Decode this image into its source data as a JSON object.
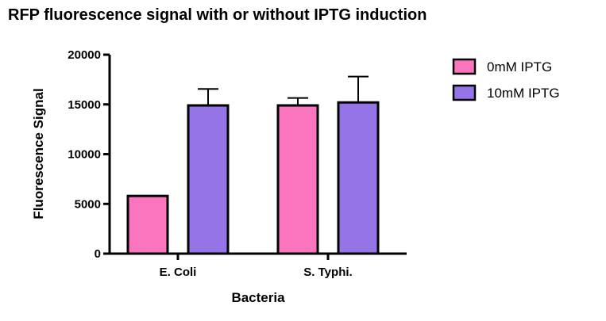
{
  "chart_data": {
    "type": "bar",
    "title": "RFP fluorescence signal with or without IPTG induction",
    "xlabel": "Bacteria",
    "ylabel": "Fluorescence Signal",
    "categories": [
      "E. Coli",
      "S. Typhi."
    ],
    "ylim": [
      0,
      20000
    ],
    "yticks": [
      0,
      5000,
      10000,
      15000,
      20000
    ],
    "yticks_labels": [
      "0",
      "5000",
      "10000",
      "15000",
      "20000"
    ],
    "series": [
      {
        "name": "0mM IPTG",
        "color": "#fb74be",
        "values": [
          5800,
          14900
        ],
        "error": [
          0,
          750
        ]
      },
      {
        "name": "10mM IPTG",
        "color": "#9574e8",
        "values": [
          14900,
          15200
        ],
        "error": [
          1650,
          2600
        ]
      }
    ],
    "legend_position": "top-right",
    "grid": false
  }
}
